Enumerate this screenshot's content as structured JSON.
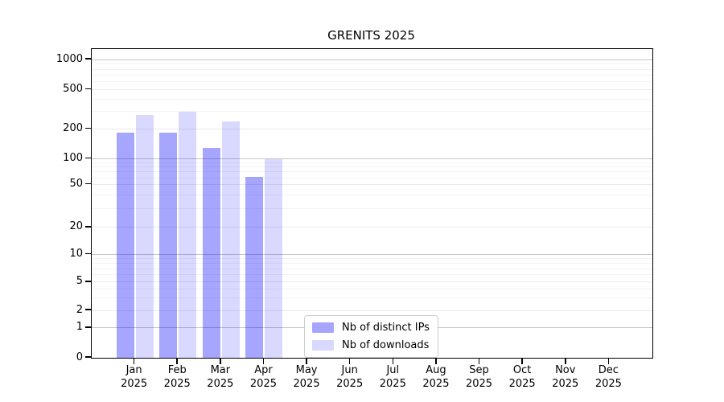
{
  "chart_data": {
    "type": "bar",
    "title": "GRENITS 2025",
    "x_year": "2025",
    "categories": [
      "Jan",
      "Feb",
      "Mar",
      "Apr",
      "May",
      "Jun",
      "Jul",
      "Aug",
      "Sep",
      "Oct",
      "Nov",
      "Dec"
    ],
    "series": [
      {
        "name": "Nb of distinct IPs",
        "color": "rgba(0,0,255,0.35)",
        "values": [
          185,
          185,
          130,
          62,
          0,
          0,
          0,
          0,
          0,
          0,
          0,
          0
        ]
      },
      {
        "name": "Nb of downloads",
        "color": "rgba(0,0,255,0.15)",
        "values": [
          280,
          300,
          240,
          100,
          0,
          0,
          0,
          0,
          0,
          0,
          0,
          0
        ]
      }
    ],
    "y_ticks": [
      0,
      1,
      2,
      5,
      10,
      20,
      50,
      100,
      200,
      500,
      1000
    ],
    "y_minor_gridlines": [
      3,
      4,
      6,
      7,
      8,
      9,
      30,
      40,
      60,
      70,
      80,
      90,
      300,
      400,
      600,
      700,
      800,
      900
    ],
    "y_scale": "symlog",
    "ylim": [
      0,
      1000
    ],
    "grid": true,
    "legend_position": "lower center"
  },
  "colors": {
    "bar_distinct_ips": "rgba(0,0,255,0.35)",
    "bar_downloads": "rgba(0,0,255,0.15)",
    "grid_decade": "#c6c6c6",
    "grid_major": "#eaeaea",
    "grid_minor": "#f3f3f3",
    "spine": "#000000",
    "legend_border": "#cccccc"
  }
}
